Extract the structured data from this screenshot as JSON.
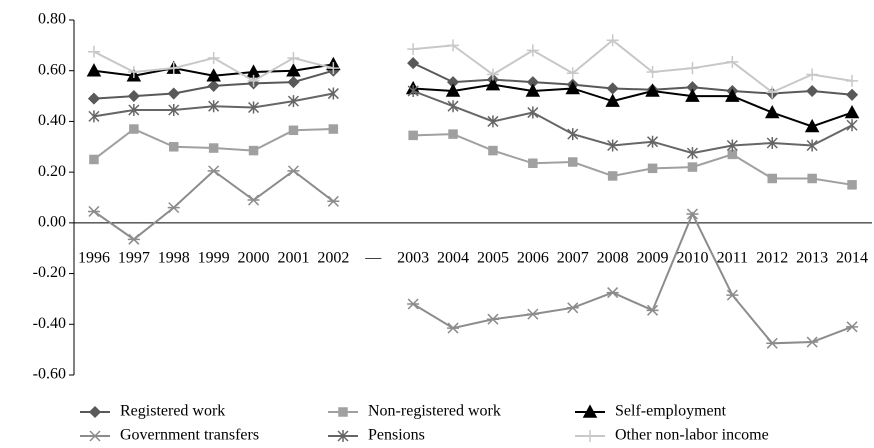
{
  "chart_data": {
    "type": "line",
    "categories": [
      "1996",
      "1997",
      "1998",
      "1999",
      "2000",
      "2001",
      "2002",
      "—",
      "2003",
      "2004",
      "2005",
      "2006",
      "2007",
      "2008",
      "2009",
      "2010",
      "2011",
      "2012",
      "2013",
      "2014"
    ],
    "ylim": [
      -0.6,
      0.8
    ],
    "yticks": [
      {
        "value": 0.8,
        "label": "0.80"
      },
      {
        "value": 0.6,
        "label": "0.60"
      },
      {
        "value": 0.4,
        "label": "0.40"
      },
      {
        "value": 0.2,
        "label": "0.20"
      },
      {
        "value": 0,
        "label": "0.00"
      },
      {
        "value": -0.2,
        "label": "-0.20"
      },
      {
        "value": -0.4,
        "label": "-0.40"
      },
      {
        "value": -0.6,
        "label": "-0.60"
      }
    ],
    "grid": false,
    "legend": "bottom",
    "series": [
      {
        "name": "Registered work",
        "color": "#595959",
        "marker": "diamond",
        "values": [
          0.49,
          0.5,
          0.51,
          0.54,
          0.55,
          0.555,
          0.6,
          null,
          0.63,
          0.555,
          0.565,
          0.555,
          0.545,
          0.53,
          0.525,
          0.535,
          0.52,
          0.51,
          0.52,
          0.505
        ]
      },
      {
        "name": "Non-registered work",
        "color": "#a0a0a0",
        "marker": "square",
        "values": [
          0.25,
          0.37,
          0.3,
          0.295,
          0.285,
          0.365,
          0.37,
          null,
          0.345,
          0.35,
          0.285,
          0.235,
          0.24,
          0.185,
          0.215,
          0.22,
          0.27,
          0.175,
          0.175,
          0.15
        ]
      },
      {
        "name": "Self-employment",
        "color": "#000000",
        "marker": "triangle",
        "values": [
          0.6,
          0.58,
          0.61,
          0.58,
          0.595,
          0.6,
          0.625,
          null,
          0.53,
          0.52,
          0.545,
          0.52,
          0.53,
          0.48,
          0.52,
          0.5,
          0.5,
          0.435,
          0.38,
          0.435
        ]
      },
      {
        "name": "Government transfers",
        "color": "#8c8c8c",
        "marker": "asterisk",
        "values": [
          0.045,
          -0.065,
          0.06,
          0.205,
          0.09,
          0.205,
          0.085,
          null,
          -0.32,
          -0.415,
          -0.38,
          -0.36,
          -0.335,
          -0.275,
          -0.345,
          0.035,
          -0.285,
          -0.475,
          -0.47,
          -0.41
        ]
      },
      {
        "name": "Pensions",
        "color": "#666666",
        "marker": "star",
        "values": [
          0.42,
          0.445,
          0.445,
          0.46,
          0.455,
          0.48,
          0.51,
          null,
          0.52,
          0.46,
          0.4,
          0.435,
          0.35,
          0.305,
          0.32,
          0.275,
          0.305,
          0.315,
          0.305,
          0.385
        ]
      },
      {
        "name": "Other non-labor income",
        "color": "#c8c8c8",
        "marker": "plus",
        "values": [
          0.675,
          0.595,
          0.61,
          0.65,
          0.56,
          0.65,
          0.61,
          null,
          0.685,
          0.7,
          0.585,
          0.68,
          0.59,
          0.72,
          0.595,
          0.61,
          0.635,
          0.515,
          0.585,
          0.56
        ]
      }
    ]
  }
}
